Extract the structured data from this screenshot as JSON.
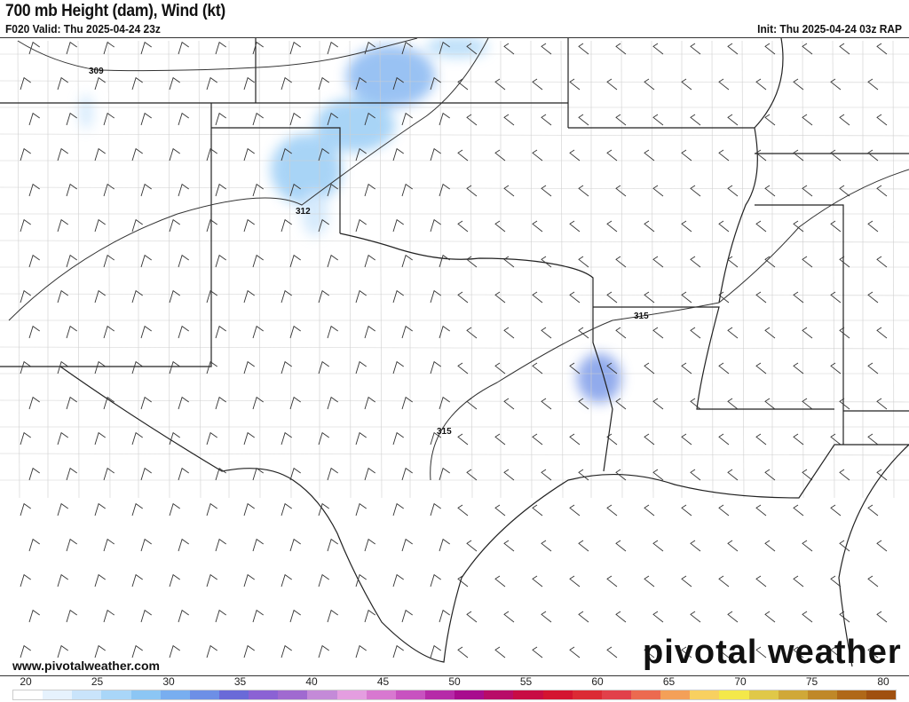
{
  "header": {
    "title": "700 mb Height (dam), Wind (kt)",
    "valid": "F020 Valid: Thu 2025-04-24 23z",
    "init": "Init: Thu 2025-04-24 03z RAP"
  },
  "map": {
    "contour_labels": [
      "309",
      "312",
      "315",
      "315"
    ],
    "precip_color": "#6fa8f0",
    "contour_color": "#333333"
  },
  "footer": {
    "website": "www.pivotalweather.com",
    "logo": "pivotal weather"
  },
  "colorbar": {
    "ticks": [
      "20",
      "25",
      "30",
      "35",
      "40",
      "45",
      "50",
      "55",
      "60",
      "65",
      "70",
      "75",
      "80"
    ],
    "colors": [
      "#ffffff",
      "#e6f2fd",
      "#c9e4fb",
      "#a9d6f8",
      "#8cc6f4",
      "#78aef0",
      "#6d8fe6",
      "#6a6ad8",
      "#8b62d4",
      "#a06ad0",
      "#c48ad8",
      "#e49ee0",
      "#d878d0",
      "#c852c0",
      "#b62aa8",
      "#a80c8e",
      "#b80c68",
      "#c80c44",
      "#d41430",
      "#dc2a34",
      "#e2404a",
      "#ec6a50",
      "#f4a058",
      "#f8d060",
      "#f4e84a",
      "#e0c848",
      "#d0a838",
      "#c08828",
      "#b06818",
      "#a05010"
    ]
  }
}
